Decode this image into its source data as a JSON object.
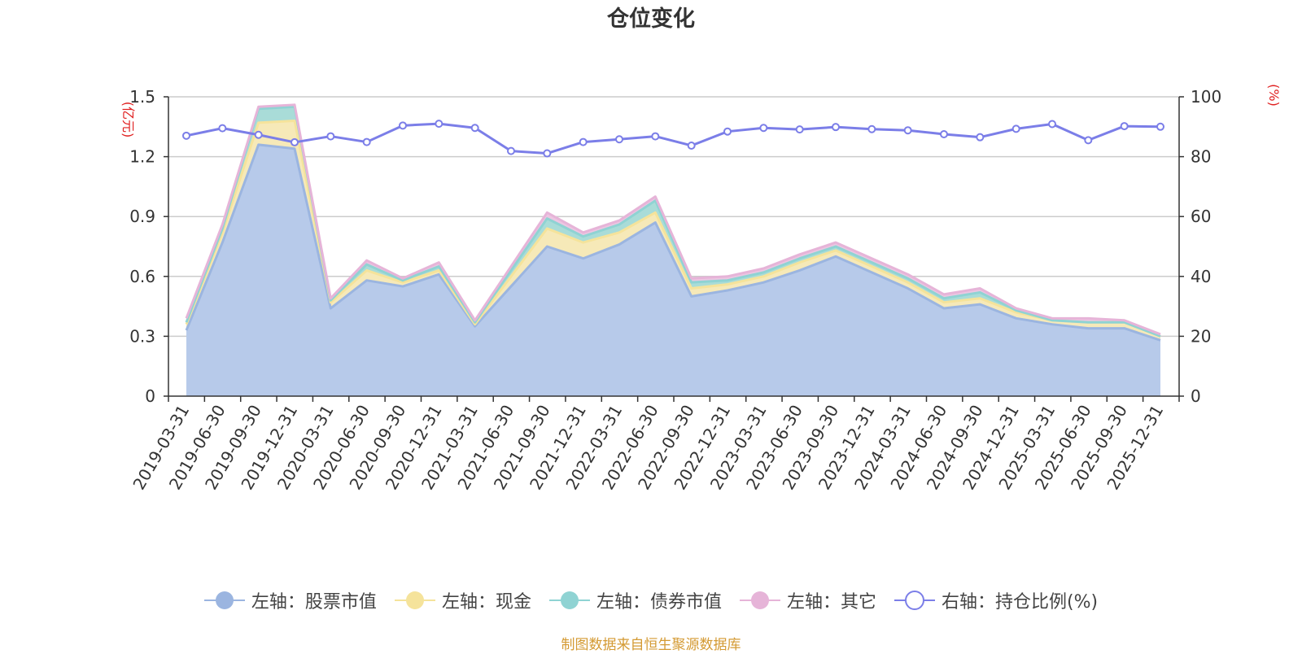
{
  "chart_data": {
    "type": "area",
    "title": "仓位变化",
    "left_axis_unit": "(亿元)",
    "right_axis_unit": "(%)",
    "left_ylim": [
      0,
      1.5
    ],
    "left_ticks": [
      "0",
      "0.3",
      "0.6",
      "0.9",
      "1.2",
      "1.5"
    ],
    "right_ylim": [
      0,
      100
    ],
    "right_ticks": [
      "0",
      "20",
      "40",
      "60",
      "80",
      "100"
    ],
    "grid": true,
    "legend_position": "bottom",
    "categories": [
      "2019-03-31",
      "2019-06-30",
      "2019-09-30",
      "2019-12-31",
      "2020-03-31",
      "2020-06-30",
      "2020-09-30",
      "2020-12-31",
      "2021-03-31",
      "2021-06-30",
      "2021-09-30",
      "2021-12-31",
      "2022-03-31",
      "2022-06-30",
      "2022-09-30",
      "2022-12-31",
      "2023-03-31",
      "2023-06-30",
      "2023-09-30",
      "2023-12-31",
      "2024-03-31",
      "2024-06-30",
      "2024-09-30",
      "2024-12-31",
      "2025-03-31",
      "2025-06-30",
      "2025-09-30",
      "2025-12-31"
    ],
    "stacked_series": [
      {
        "name": "左轴：股票市值",
        "color": "#9bb5e0",
        "fill": "#b7caea",
        "values": [
          0.33,
          0.77,
          1.26,
          1.24,
          0.44,
          0.58,
          0.55,
          0.61,
          0.35,
          0.55,
          0.75,
          0.69,
          0.76,
          0.87,
          0.5,
          0.53,
          0.57,
          0.63,
          0.7,
          0.62,
          0.54,
          0.44,
          0.46,
          0.39,
          0.36,
          0.34,
          0.34,
          0.28
        ]
      },
      {
        "name": "左轴：现金",
        "color": "#f5e39b",
        "fill": "#f6e9b8",
        "values": [
          0.03,
          0.05,
          0.11,
          0.14,
          0.03,
          0.05,
          0.02,
          0.02,
          0.01,
          0.05,
          0.09,
          0.08,
          0.06,
          0.05,
          0.04,
          0.03,
          0.03,
          0.04,
          0.03,
          0.03,
          0.03,
          0.03,
          0.03,
          0.03,
          0.02,
          0.03,
          0.03,
          0.02
        ]
      },
      {
        "name": "左轴：债券市值",
        "color": "#8fd3d3",
        "fill": "#a9dcd8",
        "values": [
          0.01,
          0.02,
          0.07,
          0.07,
          0.01,
          0.03,
          0.01,
          0.02,
          0.01,
          0.03,
          0.05,
          0.03,
          0.04,
          0.06,
          0.03,
          0.02,
          0.02,
          0.02,
          0.02,
          0.02,
          0.02,
          0.02,
          0.03,
          0.01,
          0.0,
          0.0,
          0.0,
          0.0
        ]
      },
      {
        "name": "左轴：其它",
        "color": "#e6b4d8",
        "fill": "#ecc6e2",
        "values": [
          0.02,
          0.02,
          0.01,
          0.01,
          0.01,
          0.02,
          0.01,
          0.02,
          0.01,
          0.02,
          0.03,
          0.02,
          0.02,
          0.02,
          0.02,
          0.02,
          0.02,
          0.02,
          0.02,
          0.02,
          0.02,
          0.02,
          0.02,
          0.01,
          0.01,
          0.02,
          0.01,
          0.01
        ]
      }
    ],
    "line_series": {
      "name": "右轴：持仓比例(%)",
      "color": "#7b7ee8",
      "values": [
        87,
        89.5,
        87.3,
        84.8,
        86.8,
        84.9,
        90.4,
        91,
        89.6,
        81.9,
        81.1,
        84.9,
        85.8,
        86.8,
        83.7,
        88.4,
        89.6,
        89.1,
        89.9,
        89.2,
        88.8,
        87.5,
        86.5,
        89.3,
        90.9,
        85.5,
        90.2,
        90
      ]
    }
  },
  "source_text": "制图数据来自恒生聚源数据库"
}
